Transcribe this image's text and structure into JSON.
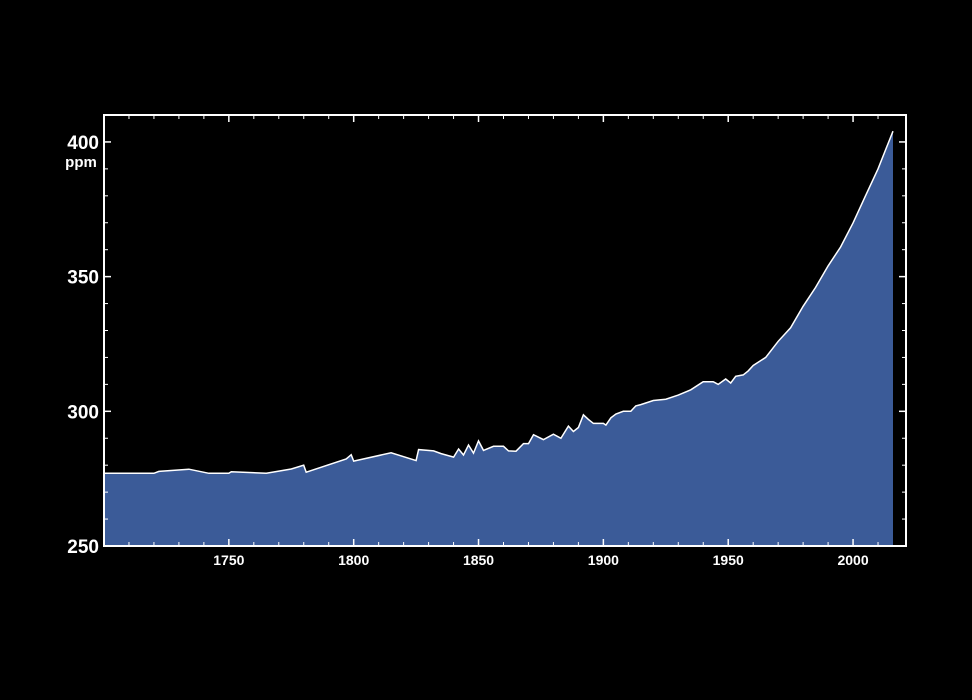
{
  "colors": {
    "background": "#000000",
    "fill": "#3b5b98",
    "line": "#ffffff",
    "axis": "#ffffff"
  },
  "chart_data": {
    "type": "area",
    "title": "",
    "xlabel": "",
    "ylabel": "ppm",
    "xlim": [
      1700,
      2020
    ],
    "ylim": [
      250,
      410
    ],
    "x_ticks": [
      "1750",
      "1800",
      "1850",
      "1900",
      "1950",
      "2000"
    ],
    "y_ticks": [
      "250",
      "300",
      "350",
      "400"
    ],
    "grid": false,
    "series": [
      {
        "values_xy": [
          [
            1700,
            277
          ],
          [
            1720,
            277
          ],
          [
            1722,
            277.7
          ],
          [
            1734,
            278.5
          ],
          [
            1742,
            277
          ],
          [
            1750,
            277
          ],
          [
            1751,
            277.6
          ],
          [
            1765,
            277
          ],
          [
            1775,
            278.6
          ],
          [
            1780,
            280
          ],
          [
            1781,
            277.4
          ],
          [
            1797,
            282.3
          ],
          [
            1799,
            283.9
          ],
          [
            1800,
            281.5
          ],
          [
            1815,
            284.6
          ],
          [
            1825,
            281.7
          ],
          [
            1826,
            285.8
          ],
          [
            1832,
            285.3
          ],
          [
            1835,
            284.3
          ],
          [
            1840,
            283
          ],
          [
            1842,
            286
          ],
          [
            1844,
            283.8
          ],
          [
            1846,
            287.5
          ],
          [
            1848,
            284.5
          ],
          [
            1850,
            289
          ],
          [
            1852,
            285.5
          ],
          [
            1856,
            287
          ],
          [
            1860,
            287
          ],
          [
            1862,
            285.3
          ],
          [
            1865,
            285.2
          ],
          [
            1868,
            288
          ],
          [
            1870,
            288
          ],
          [
            1872,
            291.3
          ],
          [
            1876,
            289.5
          ],
          [
            1880,
            291.5
          ],
          [
            1883,
            290
          ],
          [
            1886,
            294.5
          ],
          [
            1888,
            292.5
          ],
          [
            1890,
            294
          ],
          [
            1892,
            298.7
          ],
          [
            1894,
            297
          ],
          [
            1896,
            295.5
          ],
          [
            1900,
            295.5
          ],
          [
            1901,
            294.9
          ],
          [
            1903,
            297.6
          ],
          [
            1905,
            299
          ],
          [
            1908,
            300
          ],
          [
            1911,
            300
          ],
          [
            1913,
            302
          ],
          [
            1915,
            302.5
          ],
          [
            1920,
            304
          ],
          [
            1925,
            304.5
          ],
          [
            1930,
            306
          ],
          [
            1935,
            308
          ],
          [
            1940,
            311
          ],
          [
            1944,
            311
          ],
          [
            1946,
            310
          ],
          [
            1949,
            312
          ],
          [
            1951,
            310.5
          ],
          [
            1953,
            313
          ],
          [
            1956,
            313.5
          ],
          [
            1958,
            315
          ],
          [
            1960,
            317
          ],
          [
            1965,
            320
          ],
          [
            1970,
            326
          ],
          [
            1975,
            331
          ],
          [
            1980,
            339
          ],
          [
            1985,
            346
          ],
          [
            1990,
            354
          ],
          [
            1995,
            361
          ],
          [
            2000,
            370
          ],
          [
            2005,
            380
          ],
          [
            2010,
            390
          ],
          [
            2013,
            397
          ],
          [
            2016,
            404
          ]
        ]
      }
    ]
  }
}
